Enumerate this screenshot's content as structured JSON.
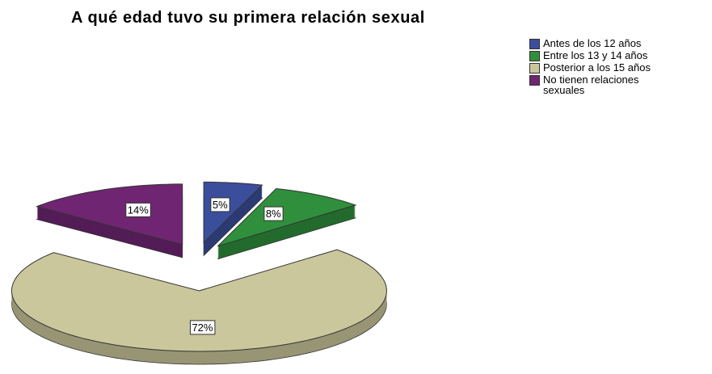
{
  "chart_data": {
    "type": "pie",
    "title": "A qué edad tuvo su primera relación sexual",
    "categories": [
      "Antes de los 12 años",
      "Entre los 13 y 14 años",
      "Posterior a los 15 años",
      "No tienen relaciones sexuales"
    ],
    "values": [
      5,
      8,
      72,
      14
    ],
    "value_labels": [
      "5%",
      "8%",
      "72%",
      "14%"
    ],
    "colors": [
      "#3b4e9c",
      "#2f8f3c",
      "#cbc79c",
      "#6f2572"
    ],
    "legend": "top-right"
  }
}
